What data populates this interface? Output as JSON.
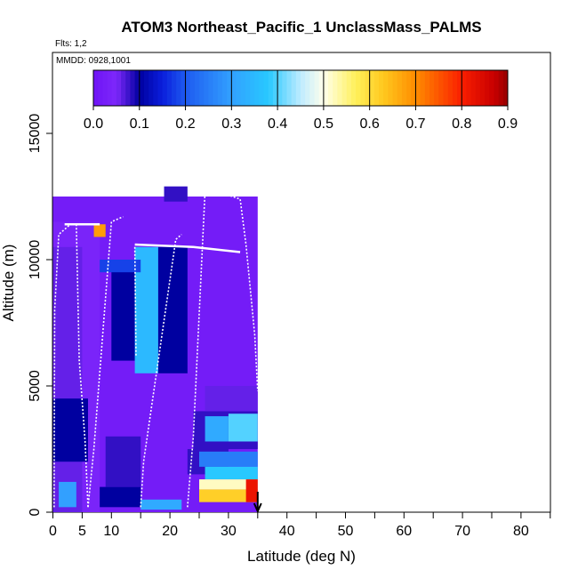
{
  "chart_data": {
    "type": "heatmap",
    "title": "ATOM3 Northeast_Pacific_1 UnclassMass_PALMS",
    "flights_label": "Flts: 1,2",
    "dates_label": "MMDD: 0928,1001",
    "xlabel": "Latitude (deg N)",
    "ylabel": "Altitude (m)",
    "xlim": [
      0,
      85
    ],
    "ylim": [
      0,
      17500
    ],
    "x_ticks": [
      0,
      5,
      10,
      20,
      30,
      40,
      50,
      60,
      70,
      80
    ],
    "y_ticks": [
      0,
      5000,
      10000,
      15000
    ],
    "colorbar": {
      "range": [
        0,
        0.9
      ],
      "ticks": [
        "0.0",
        "0.1",
        "0.2",
        "0.3",
        "0.4",
        "0.5",
        "0.6",
        "0.7",
        "0.8",
        "0.9"
      ]
    },
    "cells": [
      {
        "x0": 0,
        "x1": 35,
        "y0": 0,
        "y1": 12500,
        "v": 0.02
      },
      {
        "x0": 0,
        "x1": 8,
        "y0": 0,
        "y1": 11500,
        "v": 0.04
      },
      {
        "x0": 0,
        "x1": 5,
        "y0": 0,
        "y1": 10500,
        "v": 0.06
      },
      {
        "x0": 1,
        "x1": 4,
        "y0": 200,
        "y1": 1200,
        "v": 0.3
      },
      {
        "x0": 7,
        "x1": 9,
        "y0": 10900,
        "y1": 11400,
        "v": 0.68
      },
      {
        "x0": 8,
        "x1": 15,
        "y0": 200,
        "y1": 1000,
        "v": 0.1
      },
      {
        "x0": 15,
        "x1": 22,
        "y0": 100,
        "y1": 500,
        "v": 0.32
      },
      {
        "x0": 19,
        "x1": 23,
        "y0": 12300,
        "y1": 12900,
        "v": 0.08
      },
      {
        "x0": 10,
        "x1": 14,
        "y0": 6000,
        "y1": 10000,
        "v": 0.1
      },
      {
        "x0": 14,
        "x1": 18,
        "y0": 5500,
        "y1": 10500,
        "v": 0.35
      },
      {
        "x0": 18,
        "x1": 23,
        "y0": 5500,
        "y1": 10500,
        "v": 0.1
      },
      {
        "x0": 8,
        "x1": 15,
        "y0": 9500,
        "y1": 10000,
        "v": 0.18
      },
      {
        "x0": 0,
        "x1": 6,
        "y0": 2000,
        "y1": 4500,
        "v": 0.1
      },
      {
        "x0": 9,
        "x1": 15,
        "y0": 1000,
        "y1": 3000,
        "v": 0.08
      },
      {
        "x0": 23,
        "x1": 30,
        "y0": 1500,
        "y1": 2500,
        "v": 0.08
      },
      {
        "x0": 24,
        "x1": 35,
        "y0": 2500,
        "y1": 4000,
        "v": 0.08
      },
      {
        "x0": 26,
        "x1": 35,
        "y0": 4000,
        "y1": 5000,
        "v": 0.06
      },
      {
        "x0": 26,
        "x1": 30,
        "y0": 2800,
        "y1": 3800,
        "v": 0.32
      },
      {
        "x0": 30,
        "x1": 35,
        "y0": 2800,
        "y1": 3900,
        "v": 0.4
      },
      {
        "x0": 25,
        "x1": 35,
        "y0": 1800,
        "y1": 2400,
        "v": 0.25
      },
      {
        "x0": 26,
        "x1": 35,
        "y0": 1300,
        "y1": 1800,
        "v": 0.38
      },
      {
        "x0": 25,
        "x1": 35,
        "y0": 900,
        "y1": 1300,
        "v": 0.52
      },
      {
        "x0": 25,
        "x1": 35,
        "y0": 400,
        "y1": 900,
        "v": 0.62
      },
      {
        "x0": 33,
        "x1": 35,
        "y0": 400,
        "y1": 1300,
        "v": 0.82
      }
    ],
    "flight_track_note": "white dotted profiles shown",
    "arrow_at_latitude": 35
  }
}
